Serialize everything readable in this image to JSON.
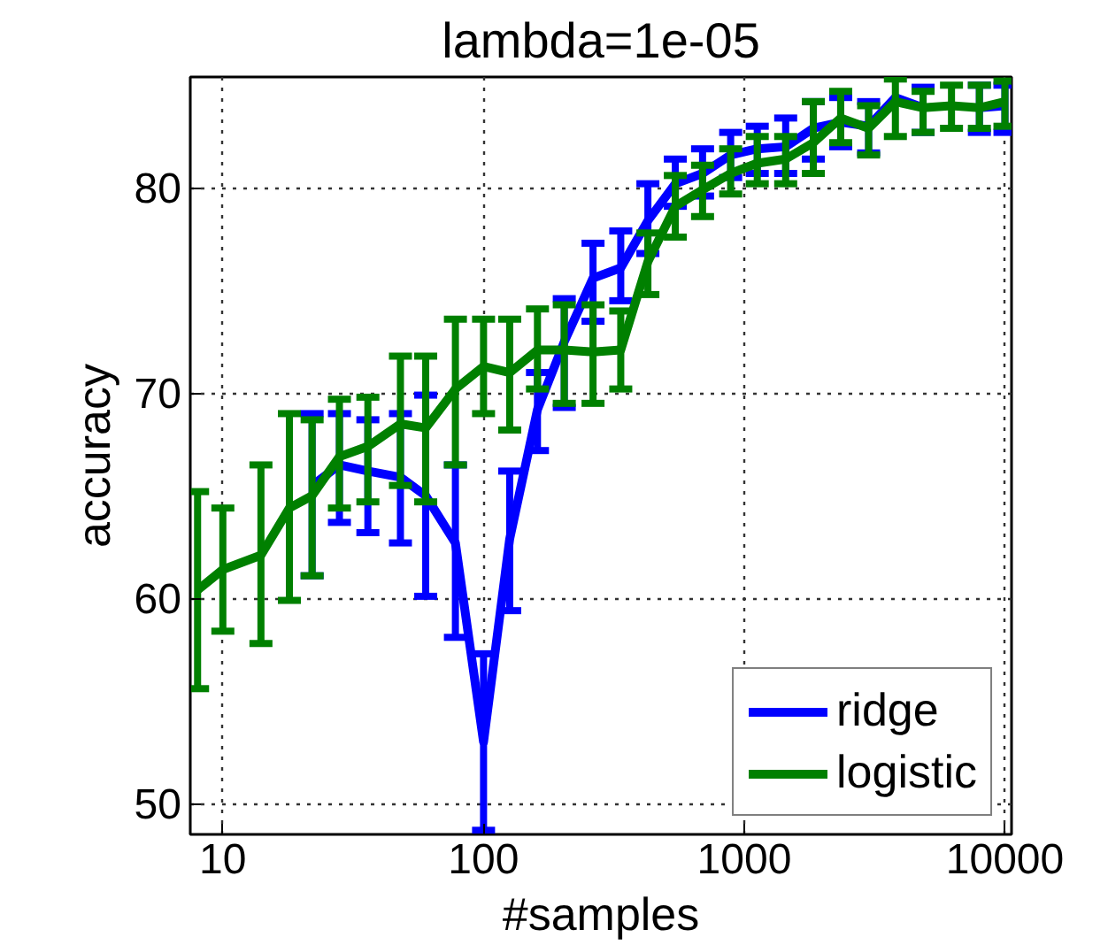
{
  "chart_data": {
    "type": "line",
    "title": "lambda=1e-05",
    "xlabel": "#samples",
    "ylabel": "accuracy",
    "x": [
      8,
      10,
      14,
      18,
      22,
      28,
      36,
      48,
      60,
      78,
      100,
      126,
      161,
      204,
      263,
      336,
      427,
      544,
      692,
      887,
      1122,
      1442,
      1841,
      2344,
      3000,
      3800,
      4853,
      6237,
      7980,
      10000
    ],
    "series": [
      {
        "name": "ridge",
        "color": "#0000ff",
        "values": [
          null,
          null,
          null,
          null,
          65.5,
          66.5,
          66.2,
          65.9,
          65.0,
          62.7,
          53,
          62.9,
          69.2,
          72.5,
          75.6,
          76.1,
          78.4,
          80.2,
          80.7,
          81.6,
          81.9,
          82.0,
          82.9,
          83.2,
          83.0,
          84.4,
          83.9,
          null,
          83.9,
          84.0
        ],
        "errors": [
          null,
          null,
          null,
          null,
          [
            61.1,
            69.0
          ],
          [
            63.7,
            69.0
          ],
          [
            63.2,
            68.7
          ],
          [
            62.7,
            69.0
          ],
          [
            60.1,
            69.9
          ],
          [
            58.1,
            66.5
          ],
          [
            48.7,
            57.3
          ],
          [
            59.4,
            66.2
          ],
          [
            67.2,
            71.0
          ],
          [
            69.3,
            74.6
          ],
          [
            73.5,
            77.3
          ],
          [
            74.5,
            77.9
          ],
          [
            76.8,
            80.2
          ],
          [
            79.1,
            81.4
          ],
          [
            79.6,
            81.9
          ],
          [
            80.5,
            82.7
          ],
          [
            80.7,
            83.0
          ],
          [
            80.7,
            83.4
          ],
          [
            81.4,
            84.2
          ],
          [
            82.0,
            84.4
          ],
          [
            81.7,
            84.2
          ],
          null,
          [
            82.7,
            84.9
          ],
          null,
          [
            82.7,
            85.0
          ],
          [
            82.7,
            85.0
          ]
        ]
      },
      {
        "name": "logistic",
        "color": "#008000",
        "values": [
          60.4,
          61.4,
          62.1,
          64.4,
          65.0,
          66.9,
          67.4,
          68.5,
          68.3,
          70.2,
          71.3,
          71.0,
          72.1,
          72.1,
          72.0,
          72.1,
          76.4,
          79.1,
          79.9,
          80.7,
          81.2,
          81.4,
          82.2,
          83.4,
          82.9,
          84.2,
          83.9,
          84.0,
          83.9,
          84.2
        ],
        "errors": [
          [
            55.6,
            65.2
          ],
          [
            58.4,
            64.4
          ],
          [
            57.8,
            66.5
          ],
          [
            59.9,
            69.0
          ],
          [
            61.1,
            68.7
          ],
          [
            64.4,
            69.7
          ],
          [
            64.7,
            69.8
          ],
          [
            65.5,
            71.8
          ],
          [
            64.7,
            71.8
          ],
          [
            66.5,
            73.6
          ],
          [
            69.0,
            73.6
          ],
          [
            68.2,
            73.6
          ],
          [
            70.2,
            74.1
          ],
          [
            69.5,
            74.3
          ],
          [
            69.5,
            74.3
          ],
          [
            70.2,
            74.0
          ],
          [
            74.8,
            77.8
          ],
          [
            77.6,
            80.6
          ],
          [
            78.6,
            81.1
          ],
          [
            79.7,
            81.9
          ],
          [
            80.2,
            82.5
          ],
          [
            80.2,
            82.5
          ],
          [
            80.7,
            84.2
          ],
          [
            82.2,
            84.7
          ],
          [
            81.6,
            84.0
          ],
          [
            82.5,
            85.3
          ],
          [
            82.7,
            84.7
          ],
          [
            82.9,
            85.0
          ],
          [
            82.9,
            85.0
          ],
          [
            83.0,
            85.2
          ]
        ]
      }
    ],
    "xlim": [
      7.5,
      10600
    ],
    "ylim": [
      48.5,
      85.4
    ],
    "xticks": [
      10,
      100,
      1000,
      10000
    ],
    "yticks": [
      50,
      60,
      70,
      80
    ],
    "log": "x",
    "grid": true,
    "legend": "bottom right",
    "line_style": "solid",
    "marker": "none"
  }
}
